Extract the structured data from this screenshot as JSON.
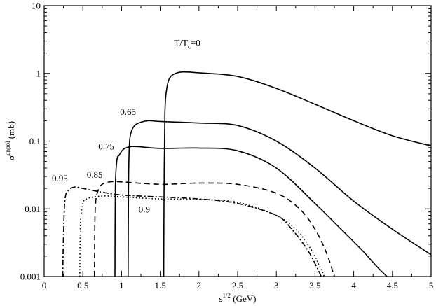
{
  "chart_data": {
    "type": "line",
    "title": "",
    "xlabel": {
      "base": "s",
      "sup": "1/2",
      "rest": " (GeV)"
    },
    "ylabel": {
      "base": "σ",
      "sup": "unpol",
      "rest": " (mb)"
    },
    "xlim": [
      0,
      5
    ],
    "ylim": [
      0.001,
      10
    ],
    "yscale": "log",
    "grid": false,
    "xticks": [
      {
        "v": 0,
        "label": "0"
      },
      {
        "v": 0.5,
        "label": "0.5"
      },
      {
        "v": 1,
        "label": "1"
      },
      {
        "v": 1.5,
        "label": "1.5"
      },
      {
        "v": 2,
        "label": "2"
      },
      {
        "v": 2.5,
        "label": "2.5"
      },
      {
        "v": 3,
        "label": "3"
      },
      {
        "v": 3.5,
        "label": "3.5"
      },
      {
        "v": 4,
        "label": "4"
      },
      {
        "v": 4.5,
        "label": "4.5"
      },
      {
        "v": 5,
        "label": "5"
      }
    ],
    "yticks": [
      {
        "v": 0.001,
        "label": "0.001"
      },
      {
        "v": 0.01,
        "label": "0.01"
      },
      {
        "v": 0.1,
        "label": "0.1"
      },
      {
        "v": 1,
        "label": "1"
      },
      {
        "v": 10,
        "label": "10"
      }
    ],
    "series": [
      {
        "label": "T/Tc=0",
        "label_base": "T/T",
        "label_sub": "c",
        "label_rest": "=0",
        "label_at": [
          1.68,
          2.55
        ],
        "style": "solid",
        "x": [
          1.545,
          1.55,
          1.56,
          1.58,
          1.62,
          1.7,
          1.8,
          2.0,
          2.5,
          3.0,
          3.5,
          4.0,
          4.5,
          5.0
        ],
        "y": [
          0.001,
          0.02,
          0.25,
          0.55,
          0.85,
          1.0,
          1.05,
          1.02,
          0.9,
          0.6,
          0.35,
          0.2,
          0.12,
          0.085
        ]
      },
      {
        "label": "0.65",
        "label_at": [
          0.98,
          0.245
        ],
        "style": "solid",
        "x": [
          1.085,
          1.09,
          1.1,
          1.12,
          1.17,
          1.25,
          1.35,
          1.5,
          2.0,
          2.5,
          3.0,
          3.5,
          4.0,
          4.5,
          5.0
        ],
        "y": [
          0.001,
          0.02,
          0.08,
          0.13,
          0.17,
          0.19,
          0.2,
          0.195,
          0.185,
          0.17,
          0.1,
          0.04,
          0.013,
          0.005,
          0.0021
        ]
      },
      {
        "label": "0.75",
        "label_at": [
          0.7,
          0.075
        ],
        "style": "solid",
        "x": [
          0.915,
          0.92,
          0.94,
          0.97,
          1.02,
          1.1,
          1.2,
          1.5,
          2.0,
          2.5,
          3.0,
          3.5,
          3.8,
          4.1,
          4.3,
          4.43
        ],
        "y": [
          0.001,
          0.02,
          0.052,
          0.062,
          0.075,
          0.082,
          0.083,
          0.078,
          0.079,
          0.072,
          0.04,
          0.012,
          0.0055,
          0.0025,
          0.0014,
          0.001
        ]
      },
      {
        "label": "0.85",
        "label_at": [
          0.55,
          0.0285
        ],
        "style": "dashed",
        "x": [
          0.65,
          0.66,
          0.7,
          0.75,
          0.85,
          1.0,
          1.5,
          2.0,
          2.5,
          3.0,
          3.3,
          3.5,
          3.65,
          3.75
        ],
        "y": [
          0.001,
          0.01,
          0.019,
          0.023,
          0.025,
          0.025,
          0.023,
          0.024,
          0.023,
          0.017,
          0.01,
          0.005,
          0.0022,
          0.001
        ]
      },
      {
        "label": "0.95",
        "label_at": [
          0.1,
          0.0255
        ],
        "style": "dashdot",
        "x": [
          0.24,
          0.25,
          0.27,
          0.32,
          0.4,
          0.5,
          0.7,
          1.0,
          1.5,
          2.0,
          2.5,
          3.0,
          3.2,
          3.4,
          3.52,
          3.58
        ],
        "y": [
          0.001,
          0.004,
          0.014,
          0.019,
          0.021,
          0.02,
          0.018,
          0.016,
          0.015,
          0.014,
          0.012,
          0.008,
          0.005,
          0.0025,
          0.0014,
          0.001
        ]
      },
      {
        "label": "0.9",
        "label_at": [
          1.22,
          0.0088
        ],
        "style": "dotted",
        "x": [
          0.46,
          0.47,
          0.5,
          0.55,
          0.65,
          0.8,
          1.0,
          1.5,
          2.0,
          2.5,
          3.0,
          3.25,
          3.45,
          3.56,
          3.62
        ],
        "y": [
          0.001,
          0.006,
          0.012,
          0.014,
          0.015,
          0.0155,
          0.015,
          0.014,
          0.0138,
          0.0125,
          0.008,
          0.005,
          0.0025,
          0.0014,
          0.001
        ]
      }
    ]
  }
}
